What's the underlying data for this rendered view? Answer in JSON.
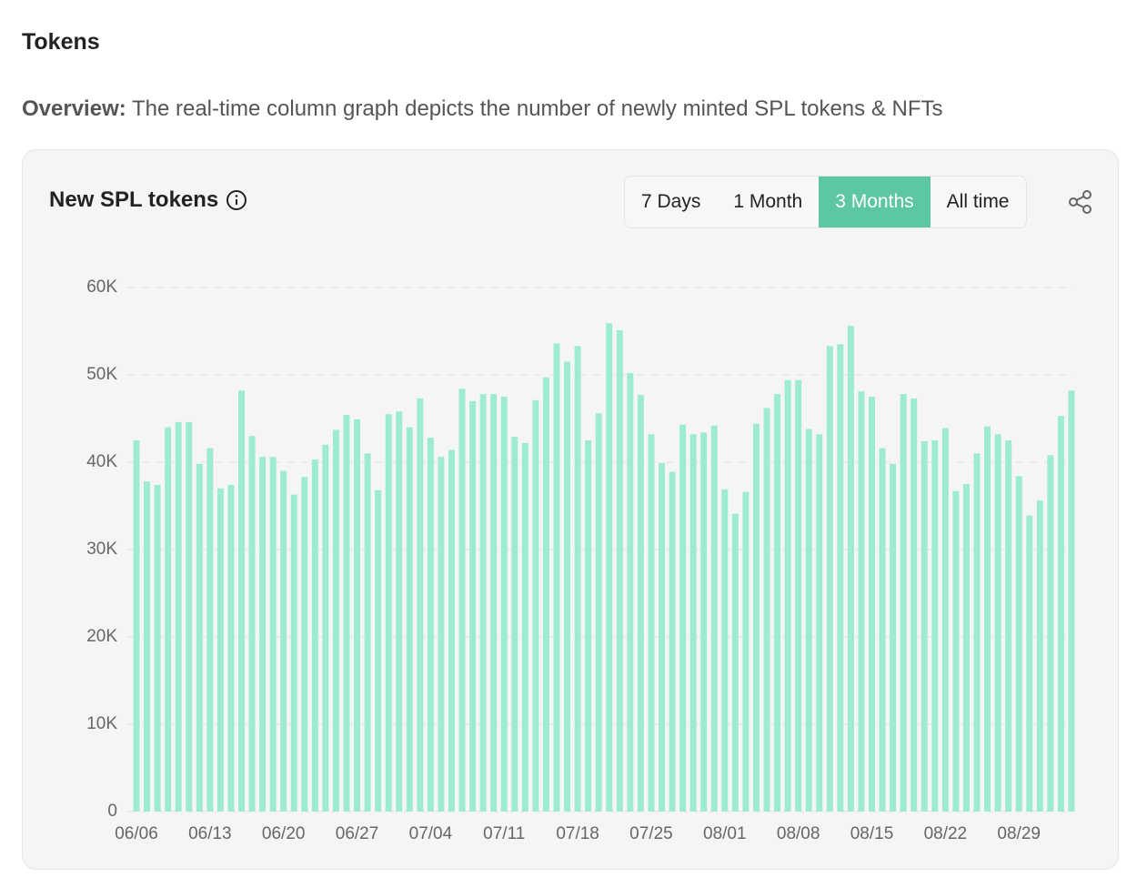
{
  "header": {
    "title": "Tokens",
    "overview_label": "Overview:",
    "overview_text": "The real-time column graph depicts the number of newly minted SPL tokens & NFTs"
  },
  "buttons": [
    "7 Days",
    "1 Month",
    "3 Months",
    "All time"
  ],
  "active_button": "3 Months",
  "chart_data": {
    "type": "bar",
    "title": "New SPL tokens",
    "color": "#9debd3",
    "grid": true,
    "categories": [
      "06/06",
      null,
      null,
      null,
      null,
      null,
      null,
      "06/13",
      null,
      null,
      null,
      null,
      null,
      null,
      "06/20",
      null,
      null,
      null,
      null,
      null,
      null,
      "06/27",
      null,
      null,
      null,
      null,
      null,
      null,
      "07/04",
      null,
      null,
      null,
      null,
      null,
      null,
      "07/11",
      null,
      null,
      null,
      null,
      null,
      null,
      "07/18",
      null,
      null,
      null,
      null,
      null,
      null,
      "07/25",
      null,
      null,
      null,
      null,
      null,
      null,
      "08/01",
      null,
      null,
      null,
      null,
      null,
      null,
      "08/08",
      null,
      null,
      null,
      null,
      null,
      null,
      "08/15",
      null,
      null,
      null,
      null,
      null,
      null,
      "08/22",
      null,
      null,
      null,
      null,
      null,
      null,
      "08/29",
      null,
      null,
      null,
      null,
      null
    ],
    "values": [
      42500,
      37800,
      37400,
      44000,
      44600,
      44600,
      39800,
      41600,
      37000,
      37400,
      48200,
      43000,
      40600,
      40600,
      39000,
      36300,
      38300,
      40300,
      42000,
      43700,
      45400,
      44900,
      41000,
      36800,
      45500,
      45800,
      44000,
      47300,
      42800,
      40600,
      41400,
      48400,
      47000,
      47800,
      47800,
      47500,
      42900,
      42200,
      47100,
      49700,
      53600,
      51500,
      53300,
      42500,
      45600,
      55900,
      55100,
      50200,
      47700,
      43200,
      39900,
      38900,
      44300,
      43200,
      43400,
      44200,
      36900,
      34100,
      36600,
      44400,
      46200,
      47800,
      49400,
      49400,
      43800,
      43200,
      53300,
      53500,
      55600,
      48100,
      47500,
      41600,
      39800,
      47800,
      47300,
      42400,
      42500,
      43900,
      36700,
      37500,
      41000,
      44100,
      43200,
      42500,
      38400,
      33900,
      35600,
      40800,
      45300,
      48200
    ],
    "ylim": [
      0,
      60000
    ],
    "yticks": [
      0,
      {
        "value": 10000,
        "label": "10K"
      },
      {
        "value": 20000,
        "label": "20K"
      },
      {
        "value": 30000,
        "label": "30K"
      },
      {
        "value": 40000,
        "label": "40K"
      },
      {
        "value": 50000,
        "label": "50K"
      },
      {
        "value": 60000,
        "label": "60K"
      }
    ]
  }
}
